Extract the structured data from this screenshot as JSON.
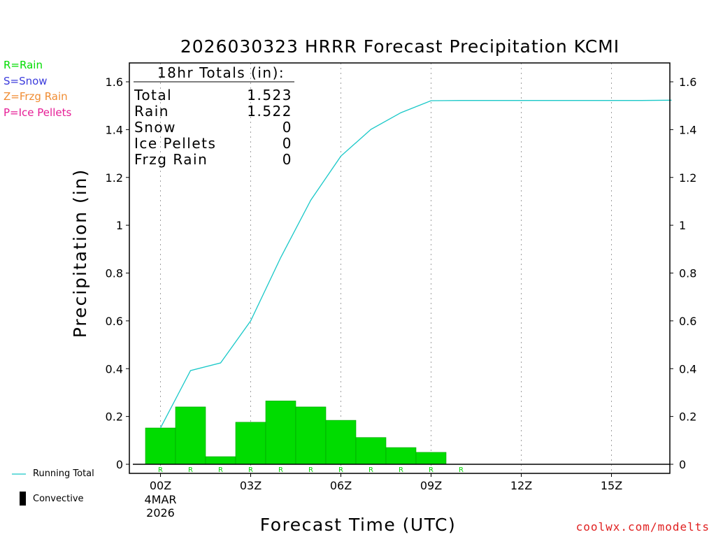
{
  "chart_data": {
    "type": "bar",
    "title": "2026030323 HRRR Forecast Precipitation KCMI",
    "xlabel": "Forecast Time (UTC)",
    "ylabel": "Precipitation (in)",
    "ylim": [
      0,
      1.68
    ],
    "xlim": [
      -1.05,
      17.0
    ],
    "yticks": [
      "0",
      "0.2",
      "0.4",
      "0.6",
      "0.8",
      "1",
      "1.2",
      "1.4",
      "1.6"
    ],
    "ytick_values": [
      0,
      0.2,
      0.4,
      0.6,
      0.8,
      1.0,
      1.2,
      1.4,
      1.6
    ],
    "xticks": [
      {
        "hour": 0,
        "label": "00Z"
      },
      {
        "hour": 3,
        "label": "03Z"
      },
      {
        "hour": 6,
        "label": "06Z"
      },
      {
        "hour": 9,
        "label": "09Z"
      },
      {
        "hour": 12,
        "label": "12Z"
      },
      {
        "hour": 15,
        "label": "15Z"
      }
    ],
    "date_label_lines": [
      "4MAR",
      "2026"
    ],
    "grid": "vertical-dotted",
    "hourly_rain": {
      "name": "Rain",
      "hours": [
        0,
        1,
        2,
        3,
        4,
        5,
        6,
        7,
        8,
        9
      ],
      "values": [
        0.152,
        0.24,
        0.032,
        0.176,
        0.265,
        0.24,
        0.184,
        0.112,
        0.07,
        0.05
      ]
    },
    "running_total": {
      "name": "Running Total",
      "hours": [
        0,
        1,
        2,
        3,
        4,
        5,
        6,
        7,
        8,
        9,
        10,
        11,
        12,
        13,
        14,
        15,
        16,
        17
      ],
      "values": [
        0.152,
        0.392,
        0.424,
        0.6,
        0.865,
        1.105,
        1.289,
        1.401,
        1.471,
        1.521,
        1.522,
        1.522,
        1.522,
        1.522,
        1.522,
        1.522,
        1.522,
        1.523
      ]
    },
    "ptype_hours": [
      0,
      1,
      2,
      3,
      4,
      5,
      6,
      7,
      8,
      9,
      10
    ],
    "ptype_symbol": "R",
    "totals_box": {
      "header": "18hr Totals (in):",
      "rows": [
        {
          "label": "Total",
          "value": "1.523"
        },
        {
          "label": "Rain",
          "value": "1.522"
        },
        {
          "label": "Snow",
          "value": "0"
        },
        {
          "label": "Ice Pellets",
          "value": "0"
        },
        {
          "label": "Frzg Rain",
          "value": "0"
        }
      ]
    },
    "colors": {
      "rain": "#00dc00",
      "snow": "#3c3cdc",
      "frzg_rain": "#f08c32",
      "ice_pellets": "#e61e96",
      "running_total": "#19c8c8",
      "axes": "#000000",
      "grid": "#a0a0a0"
    }
  },
  "type_legend": [
    {
      "text": "R=Rain",
      "color": "#00dc00"
    },
    {
      "text": "S=Snow",
      "color": "#3c3cdc"
    },
    {
      "text": "Z=Frzg Rain",
      "color": "#f08c32"
    },
    {
      "text": "P=Ice Pellets",
      "color": "#e61e96"
    }
  ],
  "bottom_legend": {
    "running_total_label": "Running Total",
    "convective_label": "Convective"
  },
  "credit": "coolwx.com/modelts"
}
